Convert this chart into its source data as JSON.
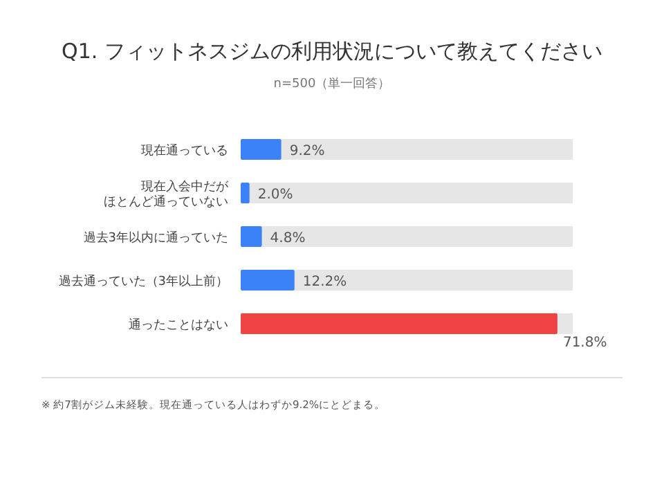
{
  "chart_data": {
    "type": "bar",
    "orientation": "horizontal",
    "relative": false,
    "title": "Q1. フィットネスジムの利用状況について教えてください",
    "subtitle": "n=500（単一回答）",
    "categories": [
      "現在通っている",
      "現在入会中だがほとんど通っていない",
      "過去3年以内に通っていた",
      "過去通っていた（3年以上前）",
      "通ったことはない"
    ],
    "values": [
      9.2,
      2.0,
      4.8,
      12.2,
      71.8
    ],
    "colors": [
      "#3b82f6",
      "#3b82f6",
      "#3b82f6",
      "#3b82f6",
      "#ef4444"
    ],
    "value_labels": [
      "9.2%",
      "2.0%",
      "4.8%",
      "12.2%",
      "71.8%"
    ],
    "annotations": [
      "※ 約7割がジム未経験。現在通っている人はわずか9.2%にとどまる。"
    ]
  }
}
